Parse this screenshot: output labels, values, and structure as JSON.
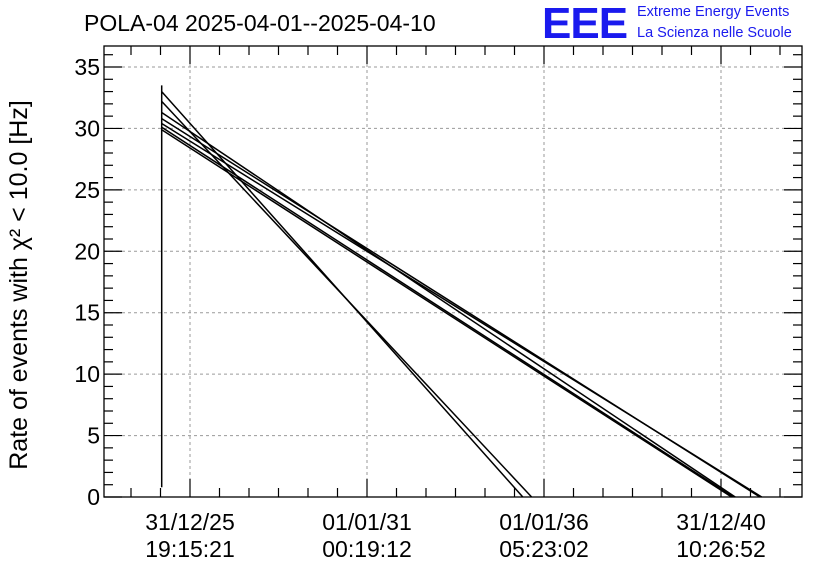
{
  "header": {
    "title": "POLA-04 2025-04-01--2025-04-10",
    "logo": {
      "mark": "EEE",
      "line1": "Extreme Energy Events",
      "line2": "La Scienza nelle Scuole",
      "color": "#1a1aee"
    }
  },
  "chart_data": {
    "type": "line",
    "title": "POLA-04 2025-04-01--2025-04-10",
    "ylabel": "Rate of events with χ² < 10.0 [Hz]",
    "xlabel": "",
    "ylim": [
      0,
      37
    ],
    "yticks": [
      0,
      5,
      10,
      15,
      20,
      25,
      30,
      35
    ],
    "xlim": [
      -0.45,
      3.53
    ],
    "xticks": [
      {
        "pos": 0,
        "date": "31/12/25",
        "time": "19:15:21"
      },
      {
        "pos": 1,
        "date": "01/01/31",
        "time": "00:19:12"
      },
      {
        "pos": 2,
        "date": "01/01/36",
        "time": "05:23:02"
      },
      {
        "pos": 3,
        "date": "31/12/40",
        "time": "10:26:52"
      }
    ],
    "grid": true,
    "line_color": "#000000",
    "series": [
      {
        "name": "segment-1",
        "x": [
          -0.16,
          -0.16,
          -0.16
        ],
        "y": [
          2.8,
          33.5,
          0.8
        ]
      },
      {
        "name": "segment-2",
        "x": [
          -0.16,
          1.88
        ],
        "y": [
          33.0,
          0.0
        ]
      },
      {
        "name": "segment-3",
        "x": [
          -0.16,
          1.93
        ],
        "y": [
          32.2,
          0.0
        ]
      },
      {
        "name": "segment-4",
        "x": [
          -0.16,
          3.08
        ],
        "y": [
          31.3,
          0.0
        ]
      },
      {
        "name": "segment-5",
        "x": [
          -0.16,
          3.22
        ],
        "y": [
          30.8,
          0.0
        ]
      },
      {
        "name": "segment-6",
        "x": [
          -0.16,
          3.23
        ],
        "y": [
          30.4,
          0.0
        ]
      },
      {
        "name": "segment-7",
        "x": [
          -0.16,
          3.06
        ],
        "y": [
          29.9,
          0.0
        ]
      },
      {
        "name": "segment-8",
        "x": [
          -0.16,
          3.07
        ],
        "y": [
          30.1,
          0.0
        ]
      }
    ]
  }
}
